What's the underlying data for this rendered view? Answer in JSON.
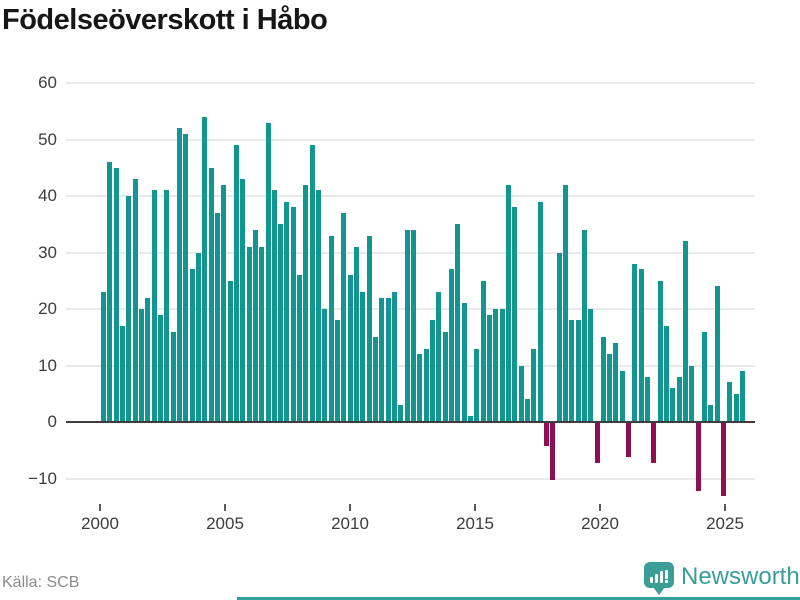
{
  "title": "Födelseöverskott i Håbo",
  "source": "Källa: SCB",
  "branding": {
    "name": "Newsworthy"
  },
  "colors": {
    "positive": "#149690",
    "negative": "#8e1050",
    "brand": "#3a9e96",
    "strip": "#35a099",
    "grid": "#e9e9e9",
    "zero_line": "#3d3d3d"
  },
  "chart_data": {
    "type": "bar",
    "title": "Födelseöverskott i Håbo",
    "xlabel": "",
    "ylabel": "",
    "grid": true,
    "ylim": [
      -14,
      62
    ],
    "yticks": [
      60,
      50,
      40,
      30,
      20,
      10,
      0,
      -10
    ],
    "ytick_labels": [
      "60",
      "50",
      "40",
      "30",
      "20",
      "10",
      "0",
      "−10"
    ],
    "xtick_years": [
      2000,
      2005,
      2010,
      2015,
      2020,
      2025
    ],
    "xtick_labels": [
      "2000",
      "2005",
      "2010",
      "2015",
      "2020",
      "2025"
    ],
    "x": [
      "2000Q1",
      "2000Q2",
      "2000Q3",
      "2000Q4",
      "2001Q1",
      "2001Q2",
      "2001Q3",
      "2001Q4",
      "2002Q1",
      "2002Q2",
      "2002Q3",
      "2002Q4",
      "2003Q1",
      "2003Q2",
      "2003Q3",
      "2003Q4",
      "2004Q1",
      "2004Q2",
      "2004Q3",
      "2004Q4",
      "2005Q1",
      "2005Q2",
      "2005Q3",
      "2005Q4",
      "2006Q1",
      "2006Q2",
      "2006Q3",
      "2006Q4",
      "2007Q1",
      "2007Q2",
      "2007Q3",
      "2007Q4",
      "2008Q1",
      "2008Q2",
      "2008Q3",
      "2008Q4",
      "2009Q1",
      "2009Q2",
      "2009Q3",
      "2009Q4",
      "2010Q1",
      "2010Q2",
      "2010Q3",
      "2010Q4",
      "2011Q1",
      "2011Q2",
      "2011Q3",
      "2011Q4",
      "2012Q1",
      "2012Q2",
      "2012Q3",
      "2012Q4",
      "2013Q1",
      "2013Q2",
      "2013Q3",
      "2013Q4",
      "2014Q1",
      "2014Q2",
      "2014Q3",
      "2014Q4",
      "2015Q1",
      "2015Q2",
      "2015Q3",
      "2015Q4",
      "2016Q1",
      "2016Q2",
      "2016Q3",
      "2016Q4",
      "2017Q1",
      "2017Q2",
      "2017Q3",
      "2017Q4",
      "2018Q1",
      "2018Q2",
      "2018Q3",
      "2018Q4",
      "2019Q1",
      "2019Q2",
      "2019Q3",
      "2019Q4",
      "2020Q1",
      "2020Q2",
      "2020Q3",
      "2020Q4",
      "2021Q1",
      "2021Q2",
      "2021Q3",
      "2021Q4",
      "2022Q1",
      "2022Q2",
      "2022Q3",
      "2022Q4",
      "2023Q1",
      "2023Q2",
      "2023Q3",
      "2023Q4",
      "2024Q1",
      "2024Q2",
      "2024Q3",
      "2024Q4",
      "2025Q1",
      "2025Q2"
    ],
    "values": [
      23,
      46,
      45,
      17,
      40,
      43,
      20,
      22,
      41,
      19,
      41,
      16,
      52,
      51,
      27,
      30,
      54,
      45,
      37,
      42,
      25,
      49,
      43,
      31,
      34,
      31,
      53,
      41,
      35,
      39,
      38,
      26,
      42,
      49,
      41,
      20,
      33,
      18,
      37,
      26,
      31,
      23,
      33,
      15,
      22,
      22,
      23,
      3,
      34,
      34,
      12,
      13,
      18,
      23,
      16,
      27,
      35,
      21,
      1,
      13,
      25,
      19,
      20,
      20,
      42,
      38,
      10,
      4,
      13,
      39,
      -4,
      -10,
      30,
      42,
      18,
      18,
      34,
      20,
      -7,
      15,
      12,
      14,
      9,
      -6,
      28,
      27,
      8,
      -7,
      25,
      17,
      6,
      8,
      32,
      10,
      -12,
      16,
      3,
      24,
      -13,
      7,
      5,
      9
    ],
    "legend": null
  }
}
